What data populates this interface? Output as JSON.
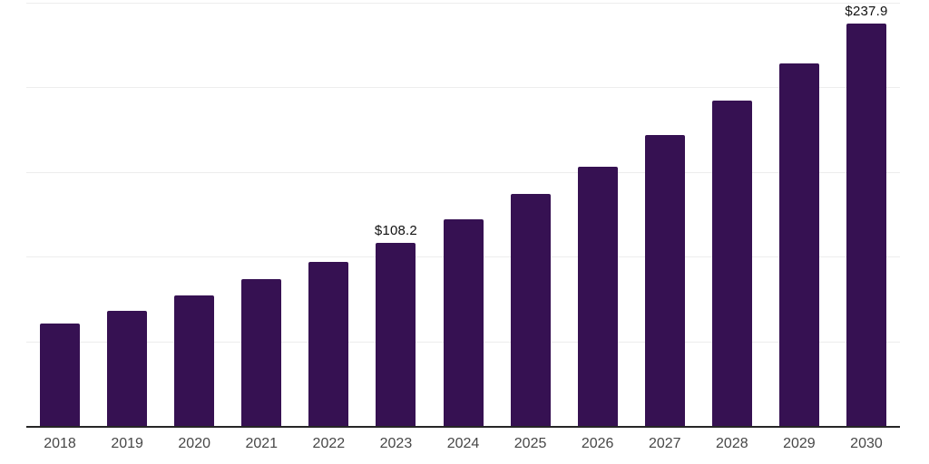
{
  "chart_data": {
    "type": "bar",
    "title": "",
    "xlabel": "",
    "ylabel": "",
    "categories": [
      "2018",
      "2019",
      "2020",
      "2021",
      "2022",
      "2023",
      "2024",
      "2025",
      "2026",
      "2027",
      "2028",
      "2029",
      "2030"
    ],
    "values": [
      60.5,
      68.0,
      77.0,
      86.6,
      96.7,
      108.2,
      122.1,
      137.0,
      152.9,
      172.0,
      192.2,
      213.9,
      237.9
    ],
    "data_labels": {
      "2023": "$108.2",
      "2030": "$237.9"
    },
    "ylim": [
      0,
      250
    ],
    "gridline_step": 50,
    "grid": "horizontal-only",
    "legend": "none",
    "y_axis_tick_labels_visible": false,
    "colors": {
      "bar": "#361152",
      "gridline": "#ededed",
      "axis_line": "#262626",
      "x_tick_label": "#474747",
      "data_label": "#111111",
      "background": "#ffffff"
    }
  }
}
